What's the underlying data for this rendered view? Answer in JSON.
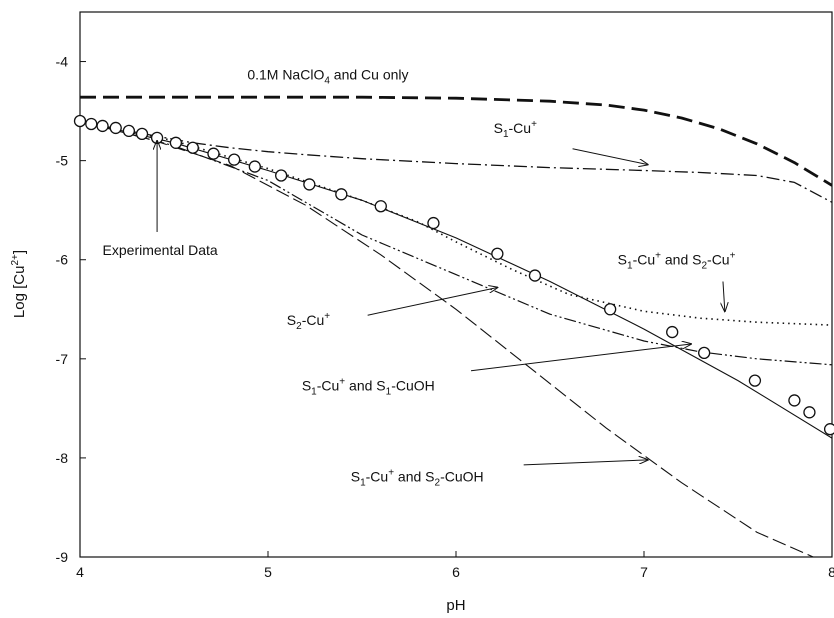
{
  "chart_data": {
    "type": "line",
    "title": "",
    "xlabel": "pH",
    "ylabel": {
      "base": "Log [Cu",
      "sup": "2+",
      "end": "]"
    },
    "xlim": [
      4,
      8
    ],
    "ylim": [
      -9,
      -3.5
    ],
    "xticks": [
      4,
      5,
      6,
      7,
      8
    ],
    "yticks": [
      -9,
      -8,
      -7,
      -6,
      -5,
      -4
    ],
    "grid": false,
    "legend": "none",
    "series": [
      {
        "name": "0.1M NaClO4 and Cu only",
        "style": "long-dash-bold",
        "x": [
          4.0,
          4.5,
          5.0,
          5.5,
          6.0,
          6.5,
          6.8,
          7.0,
          7.2,
          7.4,
          7.6,
          7.8,
          8.0
        ],
        "y": [
          -4.36,
          -4.36,
          -4.36,
          -4.36,
          -4.37,
          -4.4,
          -4.44,
          -4.49,
          -4.57,
          -4.68,
          -4.83,
          -5.02,
          -5.25
        ]
      },
      {
        "name": "S1-Cu+",
        "style": "dash-dot",
        "x": [
          4.0,
          4.2,
          4.4,
          4.6,
          4.8,
          5.0,
          5.2,
          5.5,
          6.0,
          6.5,
          7.0,
          7.3,
          7.6,
          7.8,
          8.0
        ],
        "y": [
          -4.6,
          -4.68,
          -4.75,
          -4.82,
          -4.87,
          -4.91,
          -4.94,
          -4.98,
          -5.03,
          -5.07,
          -5.1,
          -5.12,
          -5.15,
          -5.22,
          -5.42
        ]
      },
      {
        "name": "S1-Cu+ and S2-Cu+",
        "style": "dotted",
        "x": [
          4.0,
          4.5,
          5.0,
          5.5,
          5.8,
          6.0,
          6.3,
          6.6,
          7.0,
          7.3,
          7.6,
          8.0
        ],
        "y": [
          -4.6,
          -4.8,
          -5.08,
          -5.4,
          -5.62,
          -5.82,
          -6.1,
          -6.35,
          -6.52,
          -6.59,
          -6.63,
          -6.66
        ]
      },
      {
        "name": "S2-Cu+",
        "style": "dash-dot-dot",
        "x": [
          4.0,
          4.5,
          5.0,
          5.5,
          6.0,
          6.5,
          7.0,
          7.3,
          7.6,
          8.0
        ],
        "y": [
          -4.6,
          -4.85,
          -5.2,
          -5.75,
          -6.15,
          -6.55,
          -6.82,
          -6.93,
          -7.0,
          -7.06
        ]
      },
      {
        "name": "S1-Cu+ and S1-CuOH",
        "style": "solid",
        "x": [
          4.0,
          4.5,
          5.0,
          5.5,
          6.0,
          6.5,
          7.0,
          7.5,
          8.0
        ],
        "y": [
          -4.6,
          -4.82,
          -5.1,
          -5.4,
          -5.78,
          -6.22,
          -6.7,
          -7.22,
          -7.8
        ]
      },
      {
        "name": "S1-Cu+ and S2-CuOH",
        "style": "dashed",
        "x": [
          4.0,
          4.4,
          4.8,
          5.2,
          5.6,
          6.0,
          6.4,
          6.8,
          7.2,
          7.6,
          7.9
        ],
        "y": [
          -4.6,
          -4.8,
          -5.05,
          -5.45,
          -5.95,
          -6.5,
          -7.1,
          -7.7,
          -8.25,
          -8.75,
          -9.0
        ]
      },
      {
        "name": "Experimental Data",
        "style": "markers",
        "x": [
          4.0,
          4.06,
          4.12,
          4.19,
          4.26,
          4.33,
          4.41,
          4.51,
          4.6,
          4.71,
          4.82,
          4.93,
          5.07,
          5.22,
          5.39,
          5.6,
          5.88,
          6.22,
          6.42,
          6.82,
          7.15,
          7.32,
          7.59,
          7.8,
          7.88,
          7.99
        ],
        "y": [
          -4.6,
          -4.63,
          -4.65,
          -4.67,
          -4.7,
          -4.73,
          -4.77,
          -4.82,
          -4.87,
          -4.93,
          -4.99,
          -5.06,
          -5.15,
          -5.24,
          -5.34,
          -5.46,
          -5.63,
          -5.94,
          -6.16,
          -6.5,
          -6.73,
          -6.94,
          -7.22,
          -7.42,
          -7.54,
          -7.71
        ]
      }
    ],
    "annotations": [
      {
        "text": "0.1M NaClO",
        "sub": "4",
        "after": " and Cu only",
        "x": 4.89,
        "y": -4.18,
        "arrow": null
      },
      {
        "text": "S",
        "sub": "1",
        "after": "-Cu",
        "sup": "+",
        "x": 6.2,
        "y": -4.72,
        "arrow": {
          "from": [
            6.62,
            -4.88
          ],
          "to": [
            7.02,
            -5.04
          ]
        }
      },
      {
        "text": "Experimental Data",
        "sub": "",
        "after": "",
        "x": 4.12,
        "y": -5.95,
        "arrow": {
          "from": [
            4.41,
            -5.72
          ],
          "to": [
            4.41,
            -4.8
          ]
        }
      },
      {
        "text": "S",
        "sub": "1",
        "after": "-Cu",
        "sup": "+",
        "after2": " and S",
        "sub2": "2",
        "after3": "-Cu",
        "sup2": "+",
        "x": 6.86,
        "y": -6.05,
        "arrow": {
          "from": [
            7.42,
            -6.22
          ],
          "to": [
            7.43,
            -6.52
          ]
        }
      },
      {
        "text": "S",
        "sub": "2",
        "after": "-Cu",
        "sup": "+",
        "x": 5.1,
        "y": -6.66,
        "arrow": {
          "from": [
            5.53,
            -6.56
          ],
          "to": [
            6.22,
            -6.28
          ]
        }
      },
      {
        "text": "S",
        "sub": "1",
        "after": "-Cu",
        "sup": "+",
        "after2": " and S",
        "sub2": "1",
        "after3": "-CuOH",
        "x": 5.18,
        "y": -7.32,
        "arrow": {
          "from": [
            6.08,
            -7.12
          ],
          "to": [
            7.25,
            -6.85
          ]
        }
      },
      {
        "text": "S",
        "sub": "1",
        "after": "-Cu",
        "sup": "+",
        "after2": " and S",
        "sub2": "2",
        "after3": "-CuOH",
        "x": 5.44,
        "y": -8.24,
        "arrow": {
          "from": [
            6.36,
            -8.07
          ],
          "to": [
            7.02,
            -8.02
          ]
        }
      }
    ]
  }
}
